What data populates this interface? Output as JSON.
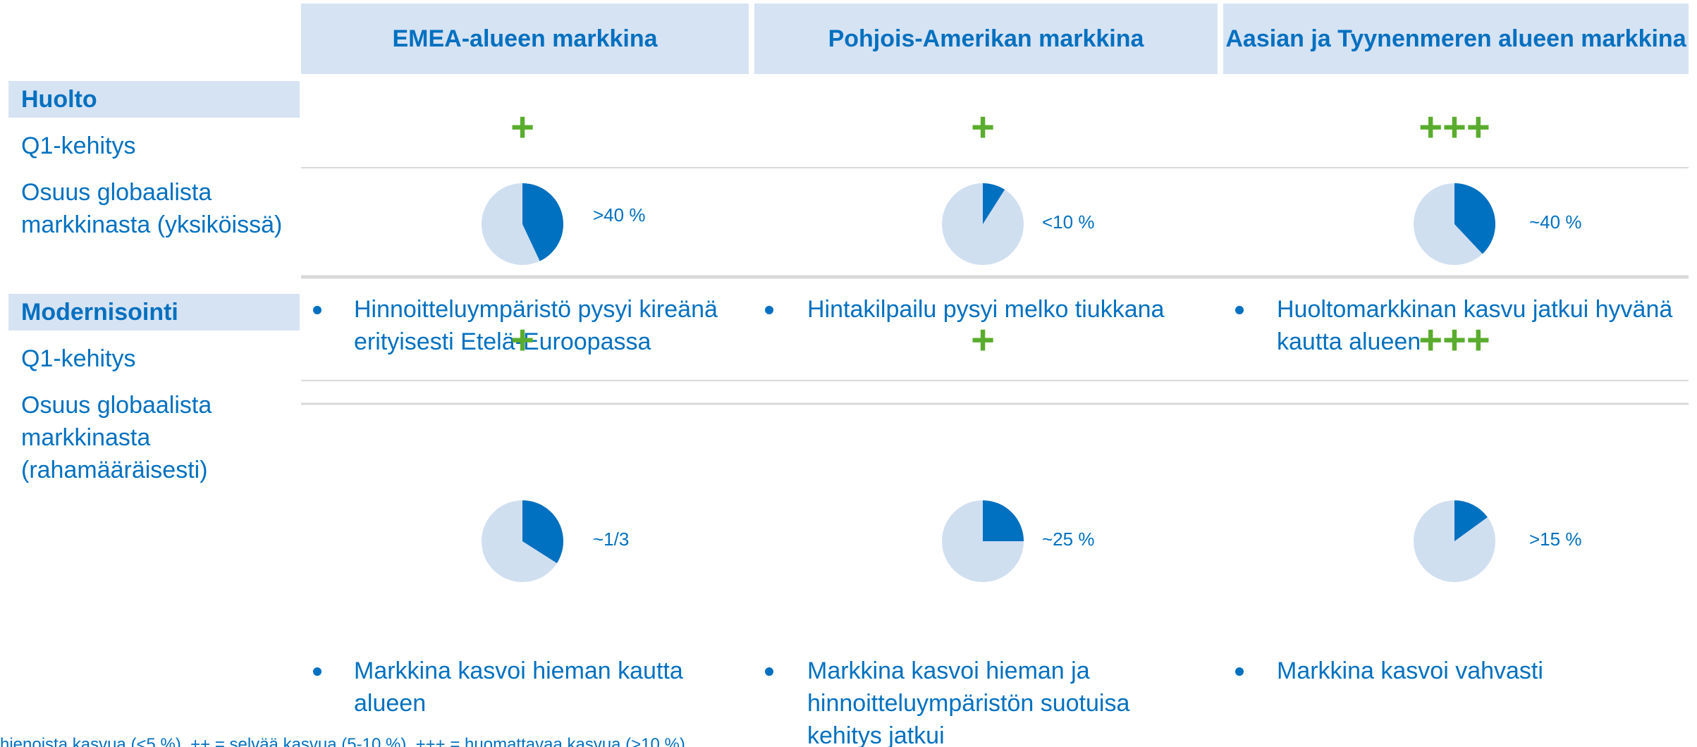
{
  "columns": [
    "EMEA-alueen markkina",
    "Pohjois-Amerikan markkina",
    "Aasian ja Tyynenmeren alueen markkina"
  ],
  "sections": [
    {
      "name": "Huolto",
      "growth_label": "Q1-kehitys",
      "share_label": "Osuus globaalista markkinasta (yksiköissä)",
      "cells": [
        {
          "growth": "+",
          "share": 43,
          "share_label": ">40 %",
          "comment": "Hinnoitteluympäristö pysyi kireänä erityisesti Etelä-Euroopassa"
        },
        {
          "growth": "+",
          "share": 9,
          "share_label": "<10 %",
          "comment": "Hintakilpailu pysyi melko tiukkana"
        },
        {
          "growth": "+++",
          "share": 38,
          "share_label": "~40 %",
          "comment": "Huoltomarkkinan kasvu jatkui hyvänä kautta alueen"
        }
      ]
    },
    {
      "name": "Modernisointi",
      "growth_label": "Q1-kehitys",
      "share_label": "Osuus globaalista markkinasta (rahamääräisesti)",
      "cells": [
        {
          "growth": "+",
          "share": 34,
          "share_label": "~1/3",
          "comment": "Markkina kasvoi hieman kautta alueen"
        },
        {
          "growth": "+",
          "share": 25,
          "share_label": "~25 %",
          "comment": "Markkina kasvoi hieman ja hinnoitteluympäristön suotuisa kehitys jatkui"
        },
        {
          "growth": "+++",
          "share": 15,
          "share_label": ">15 %",
          "comment": "Markkina kasvoi vahvasti"
        }
      ]
    }
  ],
  "footnote": "hienoista kasvua (<5 %), ++ = selvää kasvua (5-10 %), +++ = huomattavaa kasvua (>10 %)"
}
